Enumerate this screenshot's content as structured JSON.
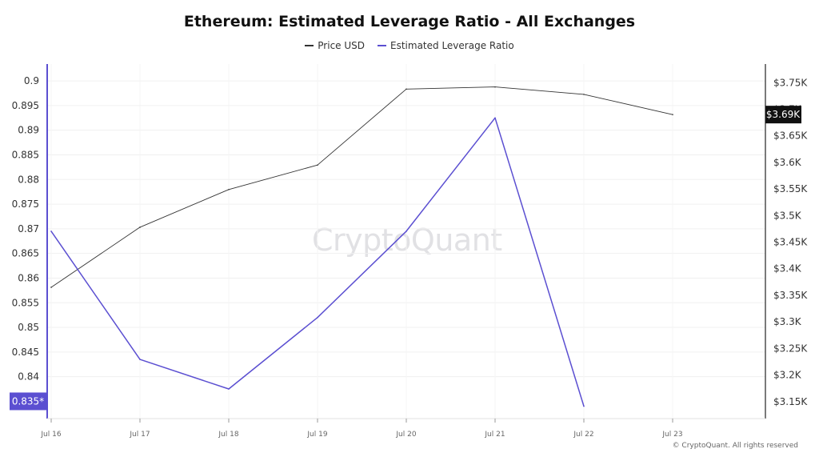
{
  "chart_data": {
    "type": "line",
    "title": "Ethereum: Estimated Leverage Ratio - All Exchanges",
    "categories": [
      "Jul 16",
      "Jul 17",
      "Jul 18",
      "Jul 19",
      "Jul 20",
      "Jul 21",
      "Jul 22",
      "Jul 23"
    ],
    "series": [
      {
        "name": "Price USD",
        "color": "#333333",
        "axis": "right",
        "values": [
          3365,
          3478,
          3549,
          3595,
          3738,
          3742,
          3728,
          3690
        ]
      },
      {
        "name": "Estimated Leverage Ratio",
        "color": "#5b4fd1",
        "axis": "left",
        "values": [
          0.8695,
          0.8435,
          0.8375,
          0.852,
          0.8695,
          0.8925,
          0.834,
          null
        ]
      }
    ],
    "left_axis": {
      "ticks": [
        "0.9",
        "0.895",
        "0.89",
        "0.885",
        "0.88",
        "0.875",
        "0.87",
        "0.865",
        "0.86",
        "0.855",
        "0.85",
        "0.845",
        "0.84"
      ],
      "ylim": [
        0.8315,
        0.9005
      ],
      "current_marker": "0.835*",
      "marker_color": "#5b4fd1"
    },
    "right_axis": {
      "ticks": [
        "$3.75K",
        "$3.7K",
        "$3.65K",
        "$3.6K",
        "$3.55K",
        "$3.5K",
        "$3.45K",
        "$3.4K",
        "$3.35K",
        "$3.3K",
        "$3.25K",
        "$3.2K",
        "$3.15K"
      ],
      "ylim": [
        3118,
        3758
      ],
      "current_marker": "$3.69K",
      "marker_color": "#111111"
    },
    "grid": true,
    "legend_position": "top-center"
  },
  "watermark": "CryptoQuant",
  "copyright": "© CryptoQuant. All rights reserved"
}
